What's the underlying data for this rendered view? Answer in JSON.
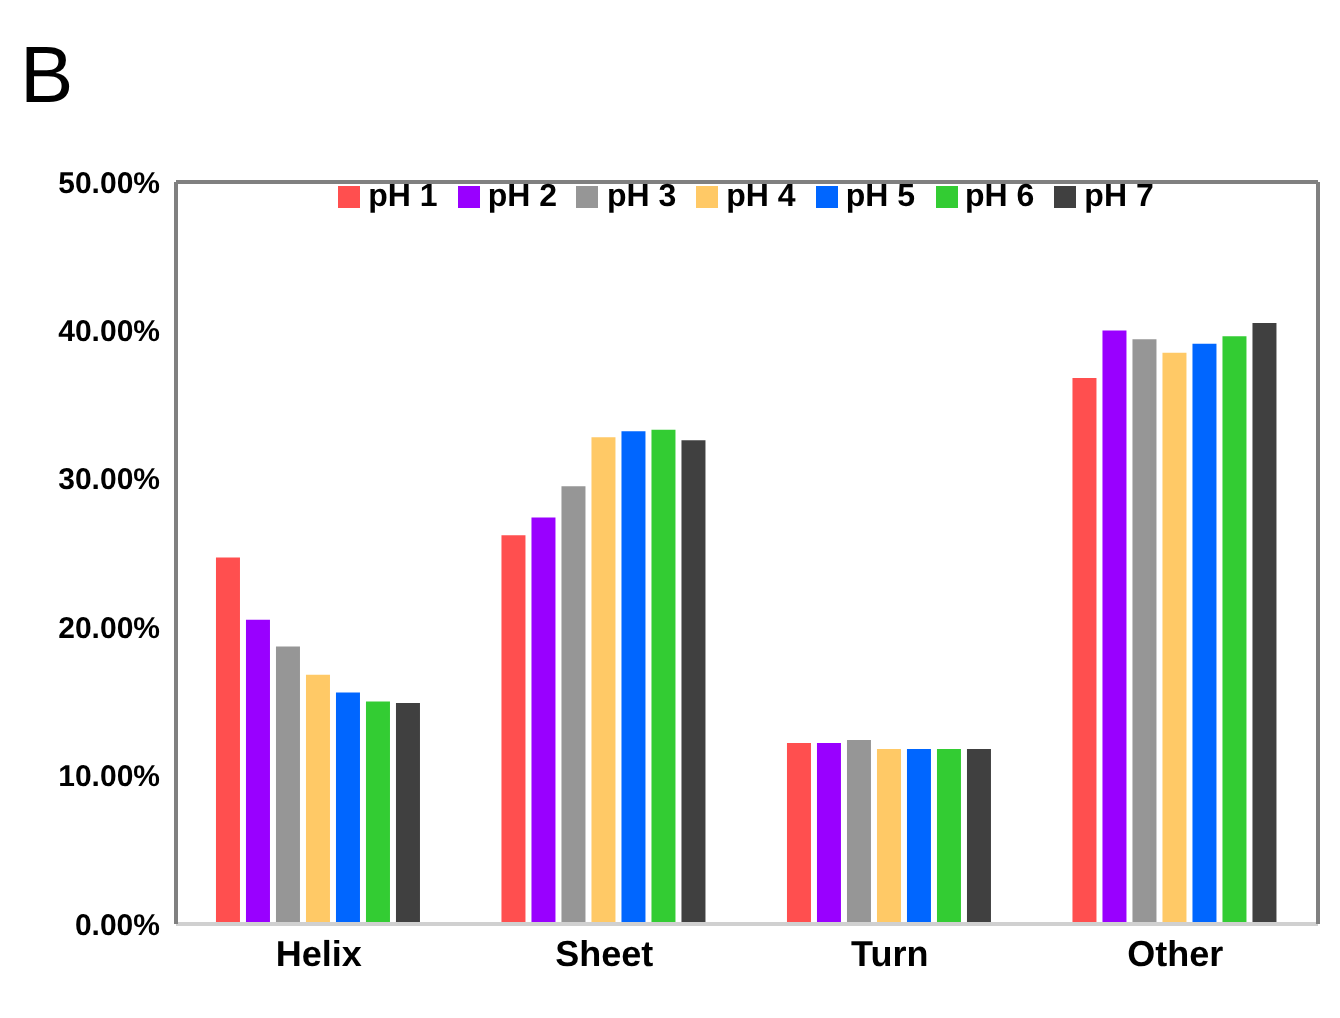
{
  "chart_data": {
    "type": "bar",
    "annotations": [
      "B"
    ],
    "categories": [
      "Helix",
      "Sheet",
      "Turn",
      "Other"
    ],
    "series": [
      {
        "name": "pH 1",
        "color": "#ff4f4f",
        "values": [
          24.7,
          26.2,
          12.2,
          36.8
        ]
      },
      {
        "name": "pH 2",
        "color": "#9900ff",
        "values": [
          20.5,
          27.4,
          12.2,
          40.0
        ]
      },
      {
        "name": "pH 3",
        "color": "#969696",
        "values": [
          18.7,
          29.5,
          12.4,
          39.4
        ]
      },
      {
        "name": "pH 4",
        "color": "#ffc966",
        "values": [
          16.8,
          32.8,
          11.8,
          38.5
        ]
      },
      {
        "name": "pH 5",
        "color": "#0066ff",
        "values": [
          15.6,
          33.2,
          11.8,
          39.1
        ]
      },
      {
        "name": "pH 6",
        "color": "#33cc33",
        "values": [
          15.0,
          33.3,
          11.8,
          39.6
        ]
      },
      {
        "name": "pH 7",
        "color": "#404040",
        "values": [
          14.9,
          32.6,
          11.8,
          40.5
        ]
      }
    ],
    "ylim": [
      0,
      50
    ],
    "yticks": [
      {
        "value": 0,
        "label": "0.00%"
      },
      {
        "value": 10,
        "label": "10.00%"
      },
      {
        "value": 20,
        "label": "20.00%"
      },
      {
        "value": 30,
        "label": "30.00%"
      },
      {
        "value": 40,
        "label": "40.00%"
      },
      {
        "value": 50,
        "label": "50.00%"
      }
    ],
    "grid": false,
    "legend": "top"
  }
}
